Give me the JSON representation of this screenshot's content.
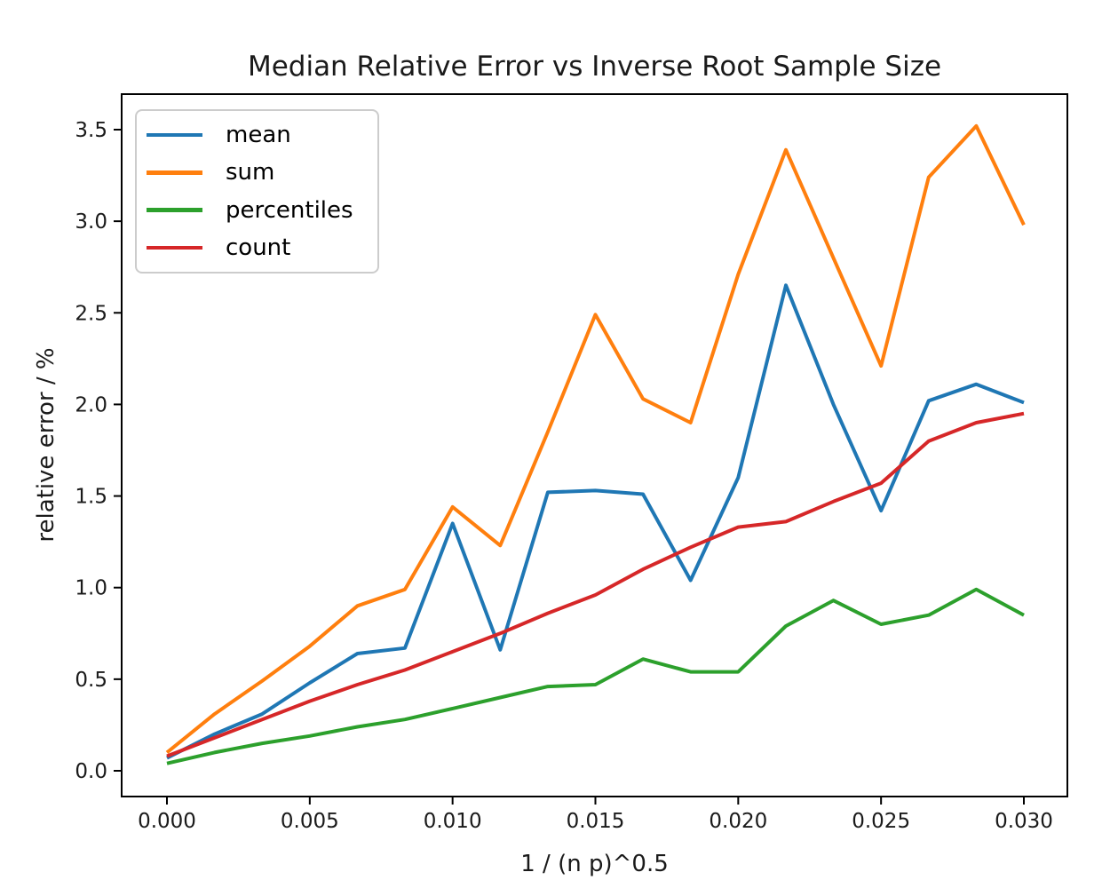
{
  "chart_data": {
    "type": "line",
    "title": "Median Relative Error vs Inverse Root Sample Size",
    "xlabel": "1 / (n p)^0.5",
    "ylabel": "relative error / %",
    "grid": false,
    "legend_position": "upper left",
    "xlim": [
      -0.0016,
      0.0315
    ],
    "ylim": [
      -0.14,
      3.69
    ],
    "x_tick_values": [
      0.0,
      0.005,
      0.01,
      0.015,
      0.02,
      0.025,
      0.03
    ],
    "x_tick_labels": [
      "0.000",
      "0.005",
      "0.010",
      "0.015",
      "0.020",
      "0.025",
      "0.030"
    ],
    "y_tick_values": [
      0.0,
      0.5,
      1.0,
      1.5,
      2.0,
      2.5,
      3.0,
      3.5
    ],
    "y_tick_labels": [
      "0.0",
      "0.5",
      "1.0",
      "1.5",
      "2.0",
      "2.5",
      "3.0",
      "3.5"
    ],
    "x": [
      0.0,
      0.001667,
      0.003333,
      0.005,
      0.006667,
      0.008333,
      0.01,
      0.011667,
      0.013333,
      0.015,
      0.016667,
      0.018333,
      0.02,
      0.021667,
      0.023333,
      0.025,
      0.026667,
      0.028333,
      0.03
    ],
    "series": [
      {
        "name": "mean",
        "color": "#1f77b4",
        "values": [
          0.07,
          0.2,
          0.31,
          0.48,
          0.64,
          0.67,
          1.35,
          0.66,
          1.52,
          1.53,
          1.51,
          1.04,
          1.6,
          2.65,
          2.0,
          1.42,
          2.02,
          2.11,
          2.01
        ]
      },
      {
        "name": "sum",
        "color": "#ff7f0e",
        "values": [
          0.1,
          0.31,
          0.49,
          0.68,
          0.9,
          0.99,
          1.44,
          1.23,
          1.85,
          2.49,
          2.03,
          1.9,
          2.71,
          3.39,
          2.8,
          2.21,
          3.24,
          3.52,
          2.98
        ]
      },
      {
        "name": "percentiles",
        "color": "#2ca02c",
        "values": [
          0.04,
          0.1,
          0.15,
          0.19,
          0.24,
          0.28,
          0.34,
          0.4,
          0.46,
          0.47,
          0.61,
          0.54,
          0.54,
          0.79,
          0.93,
          0.8,
          0.85,
          0.99,
          0.85
        ]
      },
      {
        "name": "count",
        "color": "#d62728",
        "values": [
          0.08,
          0.18,
          0.28,
          0.38,
          0.47,
          0.55,
          0.65,
          0.75,
          0.86,
          0.96,
          1.1,
          1.22,
          1.33,
          1.36,
          1.47,
          1.57,
          1.8,
          1.9,
          1.95
        ]
      }
    ]
  }
}
